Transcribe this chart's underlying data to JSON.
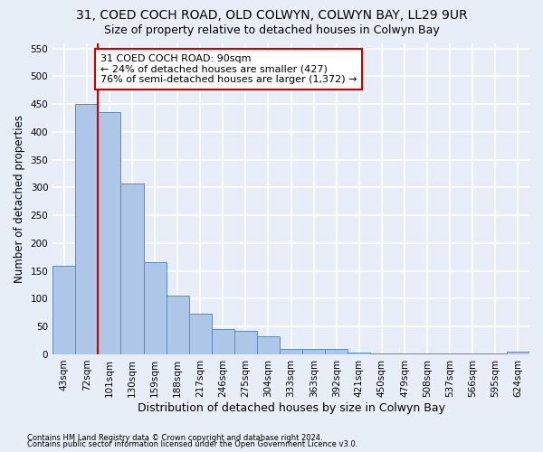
{
  "title1": "31, COED COCH ROAD, OLD COLWYN, COLWYN BAY, LL29 9UR",
  "title2": "Size of property relative to detached houses in Colwyn Bay",
  "xlabel": "Distribution of detached houses by size in Colwyn Bay",
  "ylabel": "Number of detached properties",
  "footnote1": "Contains HM Land Registry data © Crown copyright and database right 2024.",
  "footnote2": "Contains public sector information licensed under the Open Government Licence v3.0.",
  "categories": [
    "43sqm",
    "72sqm",
    "101sqm",
    "130sqm",
    "159sqm",
    "188sqm",
    "217sqm",
    "246sqm",
    "275sqm",
    "304sqm",
    "333sqm",
    "363sqm",
    "392sqm",
    "421sqm",
    "450sqm",
    "479sqm",
    "508sqm",
    "537sqm",
    "566sqm",
    "595sqm",
    "624sqm"
  ],
  "bar_heights": [
    160,
    450,
    435,
    307,
    165,
    106,
    73,
    45,
    43,
    33,
    10,
    10,
    10,
    3,
    1,
    1,
    1,
    1,
    1,
    1,
    5
  ],
  "bar_color": "#aec6e8",
  "bar_edge_color": "#5b8db8",
  "bar_edge_width": 0.7,
  "red_line_x": 1.5,
  "red_line_color": "#cc0000",
  "annotation_text": "31 COED COCH ROAD: 90sqm\n← 24% of detached houses are smaller (427)\n76% of semi-detached houses are larger (1,372) →",
  "annotation_box_color": "#ffffff",
  "annotation_border_color": "#cc0000",
  "ylim": [
    0,
    560
  ],
  "yticks": [
    0,
    50,
    100,
    150,
    200,
    250,
    300,
    350,
    400,
    450,
    500,
    550
  ],
  "bg_color": "#e8eef8",
  "plot_bg_color": "#e8eef8",
  "grid_color": "#ffffff",
  "title1_fontsize": 10,
  "title2_fontsize": 9,
  "xlabel_fontsize": 9,
  "ylabel_fontsize": 8.5,
  "tick_fontsize": 7.5,
  "annot_fontsize": 8
}
